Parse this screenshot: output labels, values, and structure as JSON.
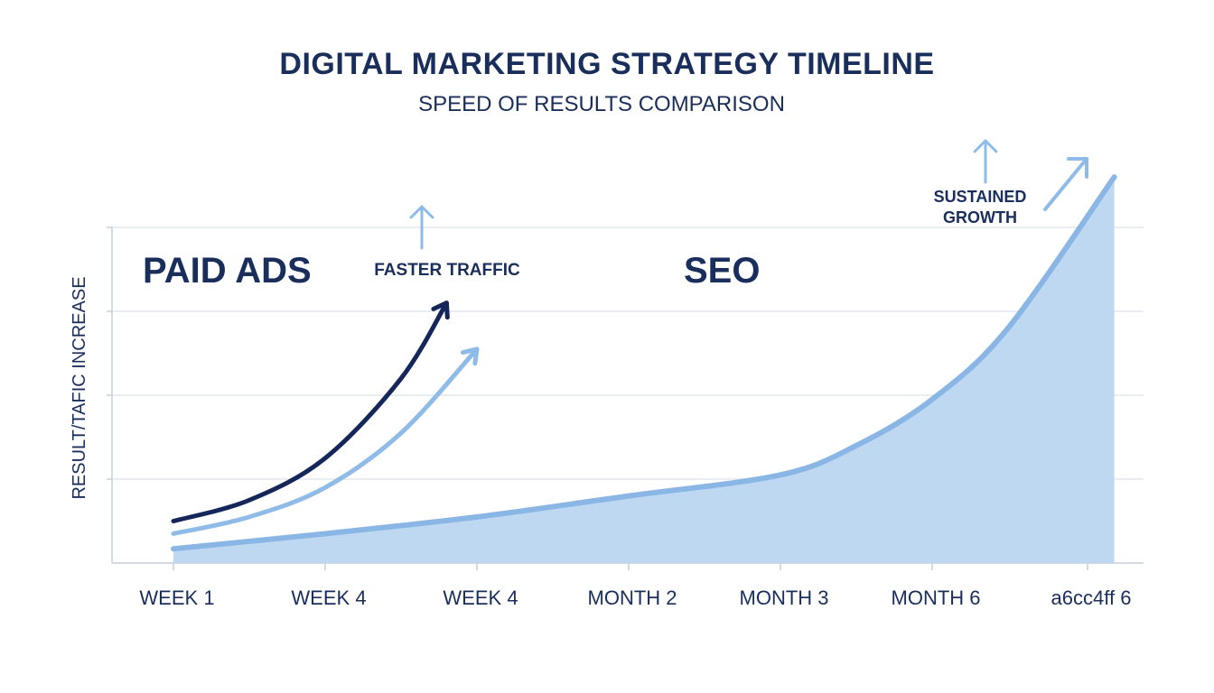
{
  "header": {
    "title": "DIGITAL MARKETING STRATEGY TIMELINE",
    "subtitle": "SPEED OF RESULTS COMPARISON"
  },
  "chart_data": {
    "type": "line",
    "title": "DIGITAL MARKETING STRATEGY TIMELINE",
    "subtitle": "SPEED OF RESULTS COMPARISON",
    "xlabel": "",
    "ylabel": "RESULT/TAFIC INCREASE",
    "categories": [
      "WEEK 1",
      "WEEK 4",
      "WEEK 4",
      "MONTH 2",
      "MONTH 3",
      "MONTH 6",
      "a6cc4ff 6"
    ],
    "ylim": [
      0,
      4
    ],
    "grid": true,
    "series": [
      {
        "label": "PAID ADS",
        "color": "#15275a",
        "fill": false,
        "x": [
          0,
          0.5,
          1,
          1.5,
          1.8
        ],
        "y": [
          0.5,
          0.75,
          1.25,
          2.2,
          3.1
        ]
      },
      {
        "label": "",
        "color": "#8fbbe8",
        "fill": false,
        "x": [
          0,
          0.5,
          1,
          1.5,
          2
        ],
        "y": [
          0.35,
          0.55,
          0.9,
          1.55,
          2.55
        ]
      },
      {
        "label": "SEO",
        "color": "#8ab6e6",
        "fill": true,
        "fill_color": "#bfd8f2",
        "x": [
          0,
          1,
          2,
          3,
          4,
          4.5,
          5,
          5.5,
          6.2
        ],
        "y": [
          0.17,
          0.35,
          0.55,
          0.8,
          1.05,
          1.4,
          1.95,
          2.8,
          4.6
        ]
      }
    ],
    "annotations": [
      {
        "text": "FASTER TRAFFIC",
        "arrow": "up"
      },
      {
        "text": "SUSTAINED GROWTH",
        "arrow": "up"
      }
    ]
  }
}
